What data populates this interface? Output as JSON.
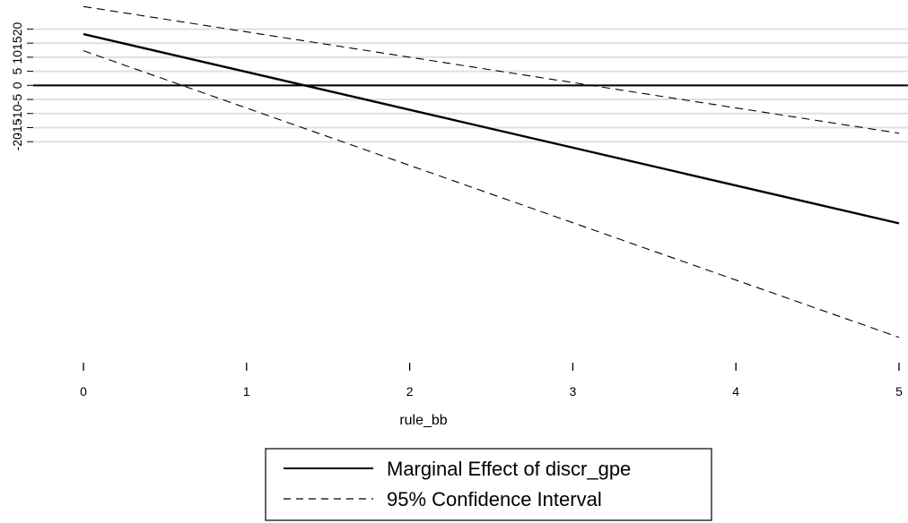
{
  "chart_data": {
    "type": "line",
    "title": "",
    "xlabel": "rule_bb",
    "ylabel": "",
    "xlim": [
      0,
      5
    ],
    "ylim": [
      -95,
      30
    ],
    "x_ticks": [
      0,
      1,
      2,
      3,
      4,
      5
    ],
    "y_ticks": [
      -20,
      -15,
      -10,
      -5,
      0,
      5,
      10,
      15,
      20
    ],
    "y_tick_labels": [
      "-20",
      "-15",
      "-10",
      "-5",
      "0",
      "5",
      "10",
      "15",
      "20"
    ],
    "grid": true,
    "reference_line_y": 0,
    "legend_position": "bottom",
    "x": [
      0,
      5
    ],
    "series": [
      {
        "name": "Marginal Effect of discr_gpe",
        "style": "solid",
        "values": [
          18.2,
          -49
        ]
      },
      {
        "name": "95% Confidence Interval",
        "style": "dashed",
        "values": [
          28,
          -17
        ]
      },
      {
        "name": "",
        "style": "dashed",
        "values": [
          12.3,
          -89.5
        ]
      }
    ]
  }
}
